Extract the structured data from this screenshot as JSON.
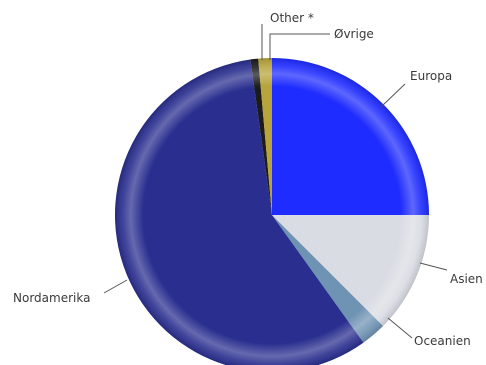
{
  "chart_data": {
    "type": "pie",
    "title": "",
    "start_angle_deg": 0,
    "direction": "clockwise",
    "legend": "none",
    "slices": [
      {
        "label": "Europa",
        "value": 25.0,
        "color": "#1f2cff"
      },
      {
        "label": "Asien",
        "value": 12.5,
        "color": "#d9dce3"
      },
      {
        "label": "Oceanien",
        "value": 2.6,
        "color": "#6f93b3"
      },
      {
        "label": "Nordamerika",
        "value": 57.7,
        "color": "#2a2f8f"
      },
      {
        "label": "Other *",
        "value": 0.8,
        "color": "#1b1b1b"
      },
      {
        "label": "Øvrige",
        "value": 1.4,
        "color": "#b7a43c"
      }
    ]
  }
}
